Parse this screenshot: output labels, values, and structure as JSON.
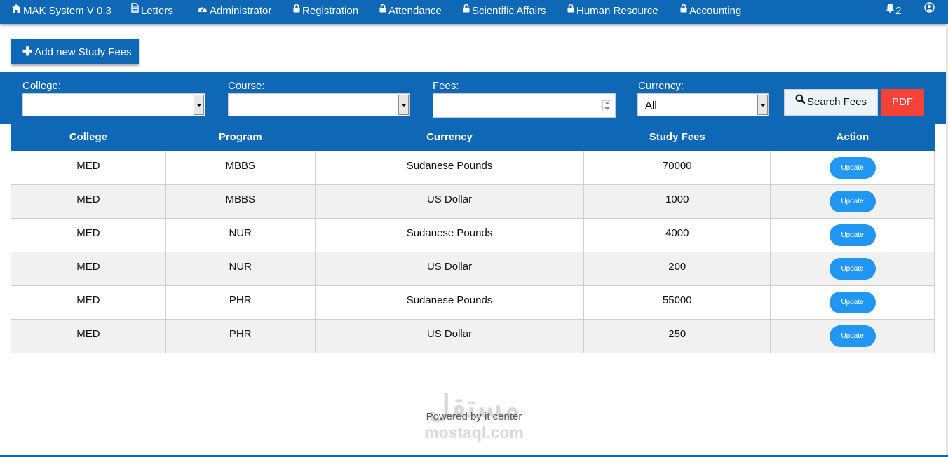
{
  "nav": {
    "brand": "MAK System V 0.3",
    "items": [
      {
        "label": "Letters",
        "icon": "file-icon"
      },
      {
        "label": "Administrator",
        "icon": "dashboard-icon"
      },
      {
        "label": "Registration",
        "icon": "lock-icon"
      },
      {
        "label": "Attendance",
        "icon": "lock-icon"
      },
      {
        "label": "Scientific Affairs",
        "icon": "lock-icon"
      },
      {
        "label": "Human Resource",
        "icon": "lock-icon"
      },
      {
        "label": "Accounting",
        "icon": "lock-icon"
      }
    ],
    "notifications_count": "2",
    "colors": {
      "primary": "#0f68b5"
    }
  },
  "toolbar": {
    "add_label": "Add new Study Fees"
  },
  "filters": {
    "college_label": "College:",
    "college_value": "",
    "course_label": "Course:",
    "course_value": "",
    "fees_label": "Fees:",
    "fees_value": "",
    "currency_label": "Currency:",
    "currency_value": "All",
    "search_label": "Search Fees",
    "pdf_label": "PDF",
    "pdf_color": "#f44336"
  },
  "table": {
    "headers": [
      "College",
      "Program",
      "Currency",
      "Study Fees",
      "Action"
    ],
    "rows": [
      {
        "college": "MED",
        "program": "MBBS",
        "currency": "Sudanese Pounds",
        "fees": "70000",
        "action": "Update"
      },
      {
        "college": "MED",
        "program": "MBBS",
        "currency": "US Dollar",
        "fees": "1000",
        "action": "Update"
      },
      {
        "college": "MED",
        "program": "NUR",
        "currency": "Sudanese Pounds",
        "fees": "4000",
        "action": "Update"
      },
      {
        "college": "MED",
        "program": "NUR",
        "currency": "US Dollar",
        "fees": "200",
        "action": "Update"
      },
      {
        "college": "MED",
        "program": "PHR",
        "currency": "Sudanese Pounds",
        "fees": "55000",
        "action": "Update"
      },
      {
        "college": "MED",
        "program": "PHR",
        "currency": "US Dollar",
        "fees": "250",
        "action": "Update"
      }
    ]
  },
  "footer": {
    "text": "Powered by it center",
    "watermark_ar": "مستقل",
    "watermark_lat": "mostaql.com"
  }
}
